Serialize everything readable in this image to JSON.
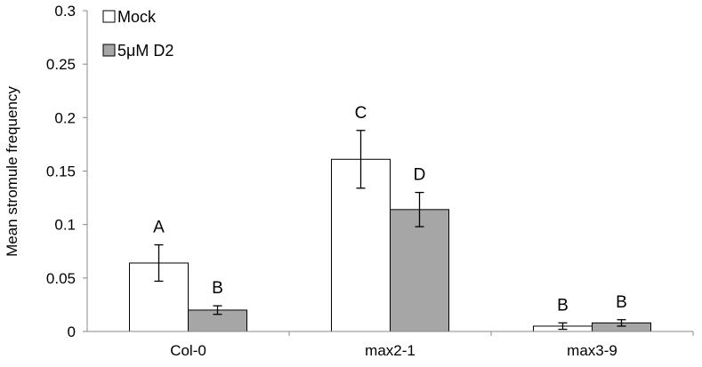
{
  "chart_data": {
    "type": "bar",
    "title": "",
    "xlabel": "",
    "ylabel": "Mean stromule frequency",
    "ylim": [
      0,
      0.3
    ],
    "yticks": [
      "0",
      "0.05",
      "0.1",
      "0.15",
      "0.2",
      "0.25",
      "0.3"
    ],
    "grid": false,
    "legend_position": "top-left",
    "categories": [
      "Col-0",
      "max2-1",
      "max3-9"
    ],
    "series": [
      {
        "name": "Mock",
        "color": "#ffffff",
        "values": [
          0.064,
          0.161,
          0.005
        ],
        "errors": [
          0.017,
          0.027,
          0.003
        ],
        "labels": [
          "A",
          "C",
          "B"
        ]
      },
      {
        "name": "5μM D2",
        "color": "#a6a6a6",
        "values": [
          0.02,
          0.114,
          0.008
        ],
        "errors": [
          0.004,
          0.016,
          0.003
        ],
        "labels": [
          "B",
          "D",
          "B"
        ]
      }
    ]
  }
}
